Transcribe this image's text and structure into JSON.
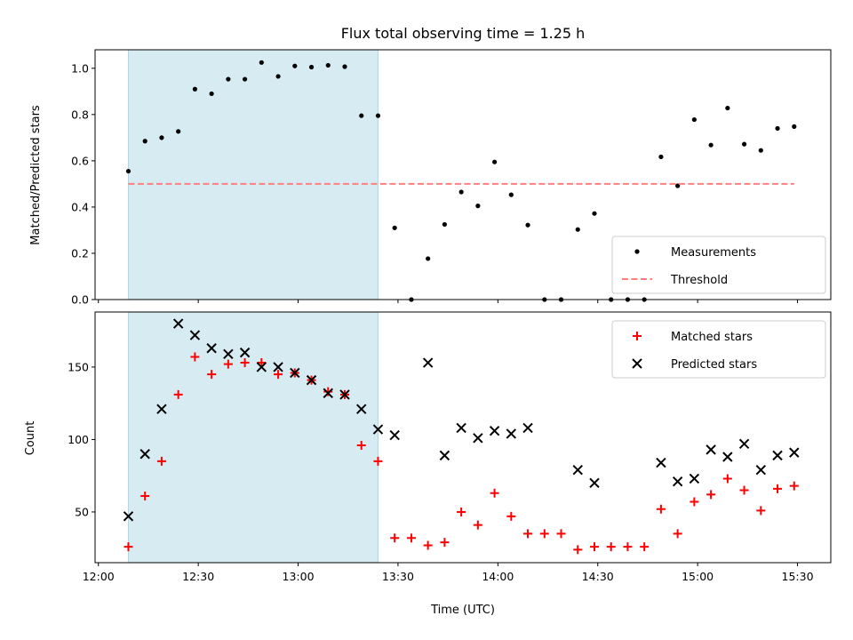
{
  "chart_data": {
    "title": "Flux total observing time = 1.25 h",
    "xlabel": "Time (UTC)",
    "x_ticks": [
      "12:00",
      "12:30",
      "13:00",
      "13:30",
      "14:00",
      "14:30",
      "15:00",
      "15:30"
    ],
    "xlim_minutes_after_noon": [
      -1,
      220
    ],
    "highlight_span": {
      "start": "12:09",
      "end": "13:24",
      "color": "#add8e6"
    },
    "panels": [
      {
        "type": "scatter",
        "ylabel": "Matched/Predicted stars",
        "ylim": [
          0,
          1.08
        ],
        "y_ticks": [
          "0.0",
          "0.2",
          "0.4",
          "0.6",
          "0.8",
          "1.0"
        ],
        "legend": {
          "position": "lower-right",
          "entries": [
            "Measurements",
            "Threshold"
          ]
        },
        "series": [
          {
            "name": "Measurements",
            "marker": "dot",
            "color": "#000000",
            "points": [
              [
                "12:09",
                0.555
              ],
              [
                "12:14",
                0.685
              ],
              [
                "12:19",
                0.7
              ],
              [
                "12:24",
                0.727
              ],
              [
                "12:29",
                0.91
              ],
              [
                "12:34",
                0.89
              ],
              [
                "12:39",
                0.953
              ],
              [
                "12:44",
                0.953
              ],
              [
                "12:49",
                1.025
              ],
              [
                "12:54",
                0.965
              ],
              [
                "12:59",
                1.01
              ],
              [
                "13:04",
                1.005
              ],
              [
                "13:09",
                1.013
              ],
              [
                "13:14",
                1.007
              ],
              [
                "13:19",
                0.795
              ],
              [
                "13:24",
                0.795
              ],
              [
                "13:29",
                0.31
              ],
              [
                "13:34",
                0.0
              ],
              [
                "13:39",
                0.177
              ],
              [
                "13:44",
                0.325
              ],
              [
                "13:49",
                0.465
              ],
              [
                "13:54",
                0.405
              ],
              [
                "13:59",
                0.595
              ],
              [
                "14:04",
                0.453
              ],
              [
                "14:09",
                0.322
              ],
              [
                "14:14",
                0.0
              ],
              [
                "14:19",
                0.0
              ],
              [
                "14:24",
                0.303
              ],
              [
                "14:29",
                0.372
              ],
              [
                "14:34",
                0.0
              ],
              [
                "14:39",
                0.0
              ],
              [
                "14:44",
                0.0
              ],
              [
                "14:49",
                0.617
              ],
              [
                "14:54",
                0.492
              ],
              [
                "14:59",
                0.778
              ],
              [
                "15:04",
                0.668
              ],
              [
                "15:09",
                0.828
              ],
              [
                "15:14",
                0.672
              ],
              [
                "15:19",
                0.645
              ],
              [
                "15:24",
                0.74
              ],
              [
                "15:29",
                0.748
              ]
            ]
          },
          {
            "name": "Threshold",
            "type": "line",
            "style": "dashed",
            "color": "#ff7f7f",
            "points": [
              [
                "12:09",
                0.5
              ],
              [
                "15:29",
                0.5
              ]
            ]
          }
        ]
      },
      {
        "type": "scatter",
        "ylabel": "Count",
        "ylim": [
          15,
          188
        ],
        "y_ticks": [
          "50",
          "100",
          "150"
        ],
        "legend": {
          "position": "top-right",
          "entries": [
            "Matched stars",
            "Predicted stars"
          ]
        },
        "series": [
          {
            "name": "Matched stars",
            "marker": "plus",
            "color": "#ff0000",
            "points": [
              [
                "12:09",
                26
              ],
              [
                "12:14",
                61
              ],
              [
                "12:19",
                85
              ],
              [
                "12:24",
                131
              ],
              [
                "12:29",
                157
              ],
              [
                "12:34",
                145
              ],
              [
                "12:39",
                152
              ],
              [
                "12:44",
                153
              ],
              [
                "12:49",
                153
              ],
              [
                "12:54",
                145
              ],
              [
                "12:59",
                146
              ],
              [
                "13:04",
                141
              ],
              [
                "13:09",
                133
              ],
              [
                "13:14",
                131
              ],
              [
                "13:19",
                96
              ],
              [
                "13:24",
                85
              ],
              [
                "13:29",
                32
              ],
              [
                "13:34",
                32
              ],
              [
                "13:39",
                27
              ],
              [
                "13:44",
                29
              ],
              [
                "13:49",
                50
              ],
              [
                "13:54",
                41
              ],
              [
                "13:59",
                63
              ],
              [
                "14:04",
                47
              ],
              [
                "14:09",
                35
              ],
              [
                "14:14",
                35
              ],
              [
                "14:19",
                35
              ],
              [
                "14:24",
                24
              ],
              [
                "14:29",
                26
              ],
              [
                "14:34",
                26
              ],
              [
                "14:39",
                26
              ],
              [
                "14:44",
                26
              ],
              [
                "14:49",
                52
              ],
              [
                "14:54",
                35
              ],
              [
                "14:59",
                57
              ],
              [
                "15:04",
                62
              ],
              [
                "15:09",
                73
              ],
              [
                "15:14",
                65
              ],
              [
                "15:19",
                51
              ],
              [
                "15:24",
                66
              ],
              [
                "15:29",
                68
              ]
            ]
          },
          {
            "name": "Predicted stars",
            "marker": "x",
            "color": "#000000",
            "points": [
              [
                "12:09",
                47
              ],
              [
                "12:14",
                90
              ],
              [
                "12:19",
                121
              ],
              [
                "12:24",
                180
              ],
              [
                "12:29",
                172
              ],
              [
                "12:34",
                163
              ],
              [
                "12:39",
                159
              ],
              [
                "12:44",
                160
              ],
              [
                "12:49",
                150
              ],
              [
                "12:54",
                150
              ],
              [
                "12:59",
                146
              ],
              [
                "13:04",
                141
              ],
              [
                "13:09",
                132
              ],
              [
                "13:14",
                131
              ],
              [
                "13:19",
                121
              ],
              [
                "13:24",
                107
              ],
              [
                "13:29",
                103
              ],
              [
                "13:39",
                153
              ],
              [
                "13:44",
                89
              ],
              [
                "13:49",
                108
              ],
              [
                "13:54",
                101
              ],
              [
                "13:59",
                106
              ],
              [
                "14:04",
                104
              ],
              [
                "14:09",
                108
              ],
              [
                "14:24",
                79
              ],
              [
                "14:29",
                70
              ],
              [
                "14:49",
                84
              ],
              [
                "14:54",
                71
              ],
              [
                "14:59",
                73
              ],
              [
                "15:04",
                93
              ],
              [
                "15:09",
                88
              ],
              [
                "15:14",
                97
              ],
              [
                "15:19",
                79
              ],
              [
                "15:24",
                89
              ],
              [
                "15:29",
                91
              ]
            ]
          }
        ]
      }
    ]
  }
}
